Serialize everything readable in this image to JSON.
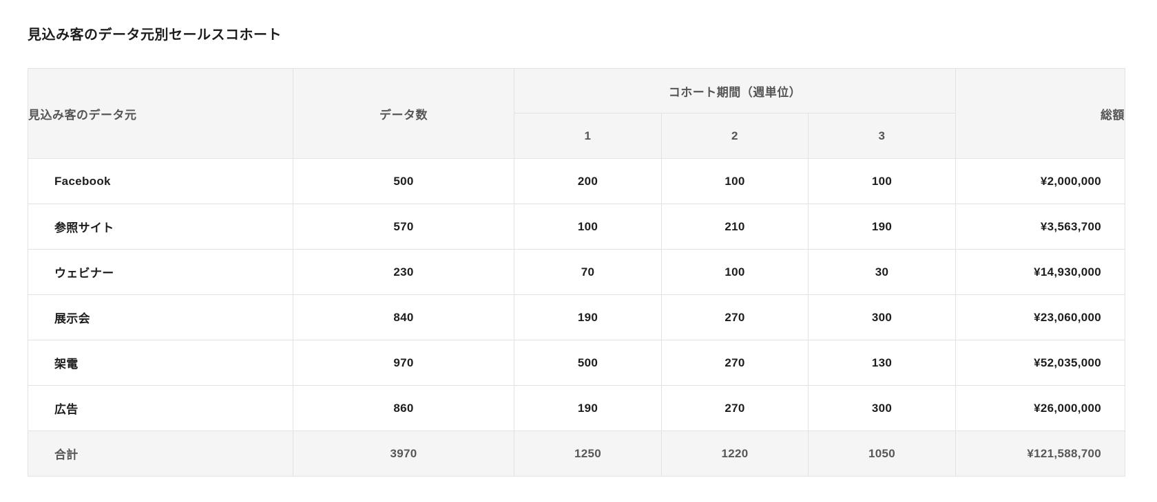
{
  "report": {
    "title": "見込み客のデータ元別セールスコホート"
  },
  "table": {
    "headers": {
      "source": "見込み客のデータ元",
      "count": "データ数",
      "cohort_group": "コホート期間（週単位）",
      "weeks": [
        "1",
        "2",
        "3"
      ],
      "total": "総額"
    },
    "rows": [
      {
        "source": "Facebook",
        "count": "500",
        "w1": "200",
        "w2": "100",
        "w3": "100",
        "total": "¥2,000,000"
      },
      {
        "source": "参照サイト",
        "count": "570",
        "w1": "100",
        "w2": "210",
        "w3": "190",
        "total": "¥3,563,700"
      },
      {
        "source": "ウェビナー",
        "count": "230",
        "w1": "70",
        "w2": "100",
        "w3": "30",
        "total": "¥14,930,000"
      },
      {
        "source": "展示会",
        "count": "840",
        "w1": "190",
        "w2": "270",
        "w3": "300",
        "total": "¥23,060,000"
      },
      {
        "source": "架電",
        "count": "970",
        "w1": "500",
        "w2": "270",
        "w3": "130",
        "total": "¥52,035,000"
      },
      {
        "source": "広告",
        "count": "860",
        "w1": "190",
        "w2": "270",
        "w3": "300",
        "total": "¥26,000,000"
      }
    ],
    "total_row": {
      "source": "合計",
      "count": "3970",
      "w1": "1250",
      "w2": "1220",
      "w3": "1050",
      "total": "¥121,588,700"
    }
  },
  "chart_data": {
    "type": "table",
    "title": "見込み客のデータ元別セールスコホート",
    "columns": [
      "見込み客のデータ元",
      "データ数",
      "コホート期間（週単位） 1",
      "コホート期間（週単位） 2",
      "コホート期間（週単位） 3",
      "総額"
    ],
    "rows": [
      [
        "Facebook",
        500,
        200,
        100,
        100,
        "¥2,000,000"
      ],
      [
        "参照サイト",
        570,
        100,
        210,
        190,
        "¥3,563,700"
      ],
      [
        "ウェビナー",
        230,
        70,
        100,
        30,
        "¥14,930,000"
      ],
      [
        "展示会",
        840,
        190,
        270,
        300,
        "¥23,060,000"
      ],
      [
        "架電",
        970,
        500,
        270,
        130,
        "¥52,035,000"
      ],
      [
        "広告",
        860,
        190,
        270,
        300,
        "¥26,000,000"
      ],
      [
        "合計",
        3970,
        1250,
        1220,
        1050,
        "¥121,588,700"
      ]
    ]
  },
  "colors": {
    "header_bg": "#f5f5f6",
    "border": "#e2e2e2",
    "header_text": "#555555",
    "data_text": "#1d1d1f",
    "total_text": "#575757",
    "page_bg": "#ffffff"
  }
}
